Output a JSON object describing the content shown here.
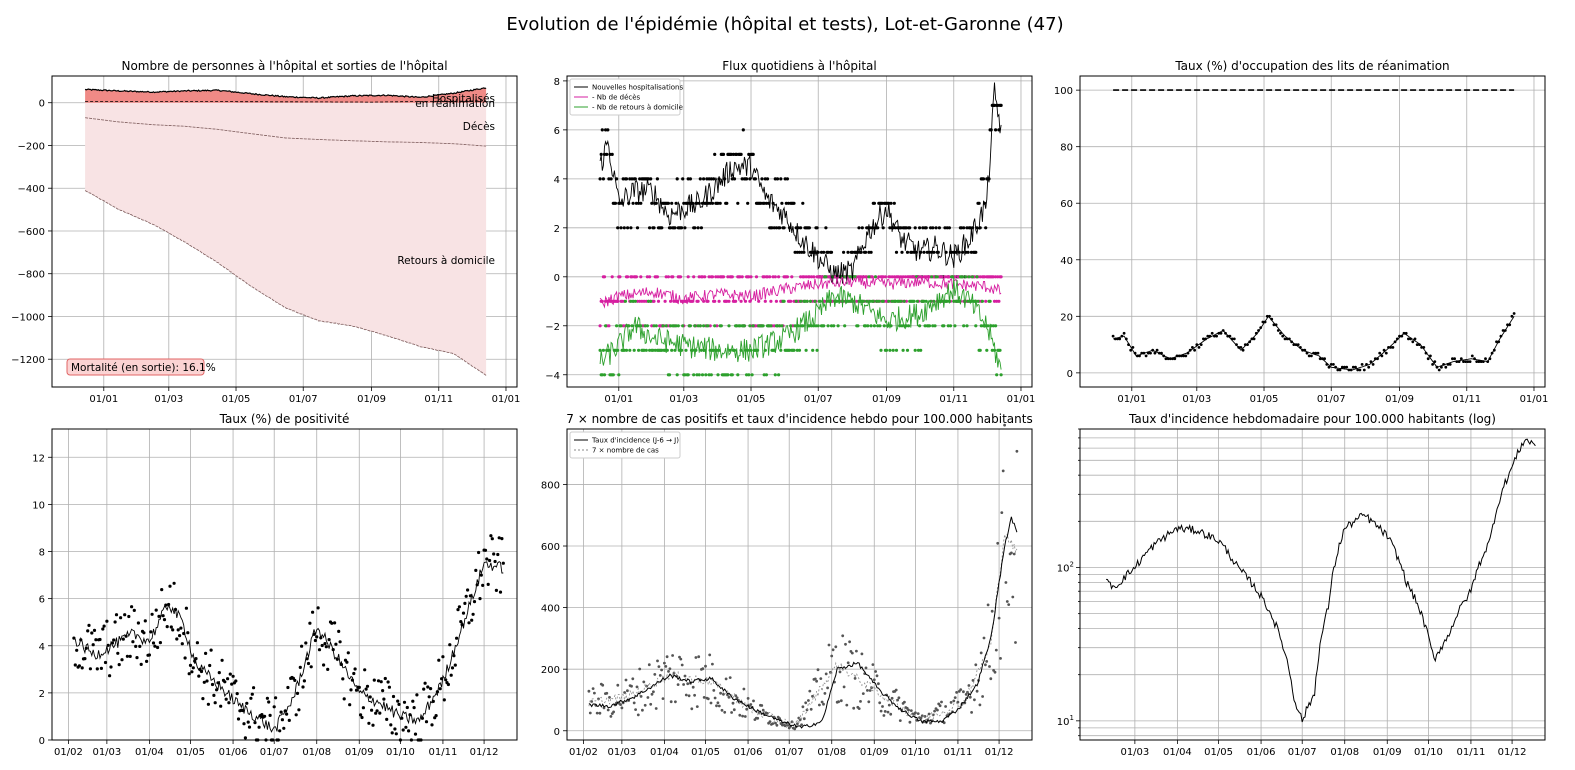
{
  "figure_title": "Evolution de l'épidémie (hôpital et tests), Lot-et-Garonne (47)",
  "chart_data": [
    {
      "id": "hosp",
      "type": "area",
      "title": "Nombre de personnes à l'hôpital et sorties de l'hôpital",
      "xlabel": "",
      "ylabel": "",
      "grid": true,
      "xlim": [
        "2020-11-15",
        "2022-01-11"
      ],
      "ylim": [
        -1330,
        125
      ],
      "x_ticks": [
        "2021-01-01",
        "2021-03-01",
        "2021-05-01",
        "2021-07-01",
        "2021-09-01",
        "2021-11-01",
        "2022-01-01"
      ],
      "x_tick_labels": [
        "01/01",
        "01/03",
        "01/05",
        "01/07",
        "01/09",
        "01/11",
        "01/01"
      ],
      "y_ticks": [
        0,
        -200,
        -400,
        -600,
        -800,
        -1000,
        -1200
      ],
      "y_tick_labels": [
        "0",
        "−200",
        "−400",
        "−600",
        "−800",
        "−1000",
        "−1200"
      ],
      "series": [
        {
          "key": "hospitalises",
          "x": [
            "2020-12-15",
            "2021-01-15",
            "2021-02-15",
            "2021-03-15",
            "2021-04-15",
            "2021-05-15",
            "2021-06-15",
            "2021-07-15",
            "2021-08-15",
            "2021-09-15",
            "2021-10-15",
            "2021-11-15",
            "2021-12-14"
          ],
          "values": [
            62,
            55,
            50,
            55,
            58,
            42,
            28,
            22,
            32,
            35,
            25,
            45,
            70
          ]
        },
        {
          "key": "reanimation",
          "x": [
            "2020-12-15",
            "2021-05-01",
            "2021-09-01",
            "2021-12-14"
          ],
          "values": [
            6,
            5,
            3,
            9
          ]
        },
        {
          "key": "deces",
          "x": [
            "2020-12-15",
            "2021-01-15",
            "2021-02-15",
            "2021-03-15",
            "2021-04-15",
            "2021-05-15",
            "2021-06-15",
            "2021-07-15",
            "2021-08-15",
            "2021-09-15",
            "2021-10-15",
            "2021-11-15",
            "2021-12-14"
          ],
          "values": [
            -70,
            -90,
            -103,
            -110,
            -125,
            -145,
            -165,
            -172,
            -178,
            -183,
            -186,
            -192,
            -203
          ]
        },
        {
          "key": "retours",
          "x": [
            "2020-12-15",
            "2021-01-15",
            "2021-02-15",
            "2021-03-15",
            "2021-04-15",
            "2021-05-15",
            "2021-06-15",
            "2021-07-15",
            "2021-08-15",
            "2021-09-15",
            "2021-10-15",
            "2021-11-15",
            "2021-12-14"
          ],
          "values": [
            -410,
            -500,
            -570,
            -650,
            -750,
            -860,
            -960,
            -1020,
            -1045,
            -1090,
            -1140,
            -1175,
            -1275
          ]
        }
      ],
      "labels": {
        "hospitalises": "Hospitalisés",
        "reanimation": "en réanimation",
        "deces": "Décès",
        "retours": "Retours à domicile",
        "mortalite": "Mortalité (en sortie): 16.1%"
      }
    },
    {
      "id": "flux",
      "type": "line",
      "title": "Flux quotidiens à l'hôpital",
      "xlabel": "",
      "ylabel": "",
      "grid": true,
      "legend_placement": "top-left",
      "xlim": [
        "2020-11-15",
        "2022-01-11"
      ],
      "ylim": [
        -4.5,
        8.2
      ],
      "x_ticks": [
        "2021-01-01",
        "2021-03-01",
        "2021-05-01",
        "2021-07-01",
        "2021-09-01",
        "2021-11-01",
        "2022-01-01"
      ],
      "x_tick_labels": [
        "01/01",
        "01/03",
        "01/05",
        "01/07",
        "01/09",
        "01/11",
        "01/01"
      ],
      "y_ticks": [
        8,
        6,
        4,
        2,
        0,
        -2,
        -4
      ],
      "y_tick_labels": [
        "8",
        "6",
        "4",
        "2",
        "0",
        "−2",
        "−4"
      ],
      "series": [
        {
          "key": "nouvelles",
          "name": "Nouvelles hospitalisations",
          "color": "#000000",
          "x": [
            "2020-12-15",
            "2020-12-22",
            "2021-01-01",
            "2021-01-15",
            "2021-02-01",
            "2021-02-15",
            "2021-03-01",
            "2021-03-15",
            "2021-04-01",
            "2021-04-15",
            "2021-05-01",
            "2021-05-15",
            "2021-06-01",
            "2021-06-15",
            "2021-07-01",
            "2021-07-15",
            "2021-08-01",
            "2021-08-15",
            "2021-09-01",
            "2021-09-15",
            "2021-10-01",
            "2021-10-15",
            "2021-11-01",
            "2021-11-15",
            "2021-12-01",
            "2021-12-08",
            "2021-12-14"
          ],
          "values": [
            4.5,
            5.5,
            3.0,
            3.5,
            3.5,
            2.5,
            2.8,
            3.0,
            3.8,
            4.5,
            4.5,
            3.2,
            2.5,
            1.6,
            0.8,
            0.1,
            0.2,
            1.8,
            2.8,
            1.5,
            1.0,
            1.2,
            0.8,
            1.5,
            3.0,
            7.5,
            6.0
          ]
        },
        {
          "key": "deces",
          "name": "- Nb de décès",
          "color": "#d61fa0",
          "x": [
            "2020-12-15",
            "2021-01-01",
            "2021-02-01",
            "2021-03-01",
            "2021-04-01",
            "2021-05-01",
            "2021-06-01",
            "2021-07-01",
            "2021-08-01",
            "2021-09-01",
            "2021-10-01",
            "2021-11-01",
            "2021-12-01",
            "2021-12-14"
          ],
          "values": [
            -1.1,
            -0.8,
            -0.6,
            -0.9,
            -0.7,
            -0.8,
            -0.5,
            -0.3,
            -0.2,
            -0.3,
            -0.2,
            -0.3,
            -0.4,
            -0.6
          ]
        },
        {
          "key": "retours",
          "name": "- Nb de retours à domicile",
          "color": "#2ca02c",
          "x": [
            "2020-12-15",
            "2021-01-01",
            "2021-01-15",
            "2021-02-01",
            "2021-03-01",
            "2021-04-01",
            "2021-05-01",
            "2021-06-01",
            "2021-07-01",
            "2021-07-15",
            "2021-08-01",
            "2021-09-01",
            "2021-10-01",
            "2021-10-15",
            "2021-11-01",
            "2021-11-15",
            "2021-12-01",
            "2021-12-14"
          ],
          "values": [
            -3.5,
            -2.8,
            -2.0,
            -2.5,
            -2.8,
            -3.0,
            -3.0,
            -2.5,
            -1.5,
            -0.8,
            -1.0,
            -1.8,
            -1.5,
            -1.0,
            -0.5,
            -1.0,
            -2.0,
            -3.8
          ]
        }
      ]
    },
    {
      "id": "rea",
      "type": "line",
      "title": "Taux (%) d'occupation des lits de réanimation",
      "xlabel": "",
      "ylabel": "",
      "grid": true,
      "xlim": [
        "2020-11-15",
        "2022-01-11"
      ],
      "ylim": [
        -5,
        105
      ],
      "x_ticks": [
        "2021-01-01",
        "2021-03-01",
        "2021-05-01",
        "2021-07-01",
        "2021-09-01",
        "2021-11-01",
        "2022-01-01"
      ],
      "x_tick_labels": [
        "01/01",
        "01/03",
        "01/05",
        "01/07",
        "01/09",
        "01/11",
        "01/01"
      ],
      "y_ticks": [
        100,
        80,
        60,
        40,
        20,
        0
      ],
      "y_tick_labels": [
        "100",
        "80",
        "60",
        "40",
        "20",
        "0"
      ],
      "series": [
        {
          "key": "capacite",
          "x": [
            "2020-12-15",
            "2021-12-14"
          ],
          "values": [
            100,
            100
          ]
        },
        {
          "key": "taux",
          "x": [
            "2020-12-15",
            "2020-12-25",
            "2021-01-05",
            "2021-01-20",
            "2021-02-05",
            "2021-02-20",
            "2021-03-10",
            "2021-03-25",
            "2021-04-10",
            "2021-04-25",
            "2021-05-05",
            "2021-05-20",
            "2021-06-05",
            "2021-06-20",
            "2021-07-01",
            "2021-07-20",
            "2021-08-05",
            "2021-08-20",
            "2021-09-05",
            "2021-09-20",
            "2021-10-05",
            "2021-10-20",
            "2021-11-05",
            "2021-11-20",
            "2021-12-01",
            "2021-12-14"
          ],
          "values": [
            12,
            13,
            6,
            8,
            5,
            7,
            12,
            15,
            8,
            14,
            20,
            13,
            8,
            6,
            2,
            1,
            3,
            8,
            14,
            10,
            2,
            4,
            5,
            4,
            12,
            20
          ]
        }
      ]
    },
    {
      "id": "positivite",
      "type": "line",
      "title": "Taux (%) de positivité",
      "xlabel": "",
      "ylabel": "",
      "grid": true,
      "xlim": [
        "2021-01-20",
        "2021-12-25"
      ],
      "ylim": [
        0,
        13.2
      ],
      "x_ticks": [
        "2021-02-01",
        "2021-03-01",
        "2021-04-01",
        "2021-05-01",
        "2021-06-01",
        "2021-07-01",
        "2021-08-01",
        "2021-09-01",
        "2021-10-01",
        "2021-11-01",
        "2021-12-01"
      ],
      "x_tick_labels": [
        "01/02",
        "01/03",
        "01/04",
        "01/05",
        "01/06",
        "01/07",
        "01/08",
        "01/09",
        "01/10",
        "01/11",
        "01/12"
      ],
      "y_ticks": [
        0,
        2,
        4,
        6,
        8,
        10,
        12
      ],
      "y_tick_labels": [
        "0",
        "2",
        "4",
        "6",
        "8",
        "10",
        "12"
      ],
      "series": [
        {
          "key": "moyenne",
          "x": [
            "2021-02-05",
            "2021-02-20",
            "2021-03-05",
            "2021-03-20",
            "2021-04-01",
            "2021-04-15",
            "2021-04-25",
            "2021-05-05",
            "2021-05-20",
            "2021-06-05",
            "2021-06-20",
            "2021-07-01",
            "2021-07-15",
            "2021-08-01",
            "2021-08-15",
            "2021-09-01",
            "2021-09-15",
            "2021-10-01",
            "2021-10-15",
            "2021-11-01",
            "2021-11-15",
            "2021-12-01",
            "2021-12-15"
          ],
          "values": [
            4.3,
            3.6,
            4.0,
            4.5,
            4.2,
            5.8,
            5.0,
            3.2,
            2.4,
            1.5,
            0.9,
            0.4,
            1.8,
            4.8,
            3.6,
            2.0,
            1.6,
            1.0,
            0.8,
            2.5,
            4.8,
            7.5,
            7.3
          ]
        }
      ]
    },
    {
      "id": "cas",
      "type": "line",
      "title": "7 × nombre de cas positifs et taux d'incidence hebdo pour 100.000 habitants",
      "xlabel": "",
      "ylabel": "",
      "grid": true,
      "legend_placement": "top-left",
      "xlim": [
        "2021-01-20",
        "2021-12-25"
      ],
      "ylim": [
        -30,
        980
      ],
      "x_ticks": [
        "2021-02-01",
        "2021-03-01",
        "2021-04-01",
        "2021-05-01",
        "2021-06-01",
        "2021-07-01",
        "2021-08-01",
        "2021-09-01",
        "2021-10-01",
        "2021-11-01",
        "2021-12-01"
      ],
      "x_tick_labels": [
        "01/02",
        "01/03",
        "01/04",
        "01/05",
        "01/06",
        "01/07",
        "01/08",
        "01/09",
        "01/10",
        "01/11",
        "01/12"
      ],
      "y_ticks": [
        0,
        200,
        400,
        600,
        800
      ],
      "y_tick_labels": [
        "0",
        "200",
        "400",
        "600",
        "800"
      ],
      "series": [
        {
          "key": "incidence",
          "name": "Taux d'incidence (J-6 → J)",
          "color": "#000000",
          "x": [
            "2021-02-05",
            "2021-02-20",
            "2021-03-10",
            "2021-03-25",
            "2021-04-05",
            "2021-04-20",
            "2021-05-05",
            "2021-05-20",
            "2021-06-05",
            "2021-06-25",
            "2021-07-10",
            "2021-07-25",
            "2021-08-05",
            "2021-08-20",
            "2021-09-05",
            "2021-09-20",
            "2021-10-05",
            "2021-10-20",
            "2021-11-01",
            "2021-11-15",
            "2021-11-25",
            "2021-12-05",
            "2021-12-10",
            "2021-12-14"
          ],
          "values": [
            85,
            80,
            110,
            150,
            180,
            160,
            170,
            110,
            70,
            30,
            10,
            30,
            200,
            220,
            130,
            70,
            30,
            30,
            70,
            150,
            300,
            600,
            690,
            650
          ]
        },
        {
          "key": "cas7",
          "name": "7 × nombre de cas",
          "color": "#888888",
          "x": [
            "2021-02-05",
            "2021-03-05",
            "2021-04-05",
            "2021-05-05",
            "2021-06-05",
            "2021-07-05",
            "2021-08-05",
            "2021-09-05",
            "2021-10-05",
            "2021-11-05",
            "2021-11-25",
            "2021-12-05",
            "2021-12-14"
          ],
          "values": [
            90,
            110,
            180,
            160,
            65,
            15,
            215,
            120,
            35,
            90,
            280,
            640,
            580
          ]
        }
      ]
    },
    {
      "id": "incidence_log",
      "type": "line",
      "title": "Taux d'incidence hebdomadaire pour 100.000 habitants (log)",
      "xlabel": "",
      "ylabel": "",
      "grid": true,
      "yscale": "log",
      "xlim": [
        "2021-01-20",
        "2021-12-25"
      ],
      "ylim": [
        7.5,
        800
      ],
      "x_ticks": [
        "2021-03-01",
        "2021-04-01",
        "2021-05-01",
        "2021-06-01",
        "2021-07-01",
        "2021-08-01",
        "2021-09-01",
        "2021-10-01",
        "2021-11-01",
        "2021-12-01"
      ],
      "x_tick_labels": [
        "01/03",
        "01/04",
        "01/05",
        "01/06",
        "01/07",
        "01/08",
        "01/09",
        "01/10",
        "01/11",
        "01/12"
      ],
      "series": [
        {
          "key": "incidence",
          "x": [
            "2021-02-08",
            "2021-02-15",
            "2021-03-01",
            "2021-03-15",
            "2021-04-01",
            "2021-04-15",
            "2021-05-01",
            "2021-05-15",
            "2021-06-01",
            "2021-06-15",
            "2021-06-25",
            "2021-07-01",
            "2021-07-10",
            "2021-07-20",
            "2021-08-01",
            "2021-08-15",
            "2021-09-01",
            "2021-09-15",
            "2021-10-01",
            "2021-10-05",
            "2021-10-15",
            "2021-11-01",
            "2021-11-15",
            "2021-12-01",
            "2021-12-10",
            "2021-12-18"
          ],
          "values": [
            80,
            75,
            100,
            140,
            180,
            175,
            150,
            100,
            65,
            35,
            14,
            10,
            15,
            55,
            180,
            220,
            160,
            80,
            35,
            25,
            35,
            70,
            150,
            450,
            680,
            640
          ]
        }
      ]
    }
  ]
}
